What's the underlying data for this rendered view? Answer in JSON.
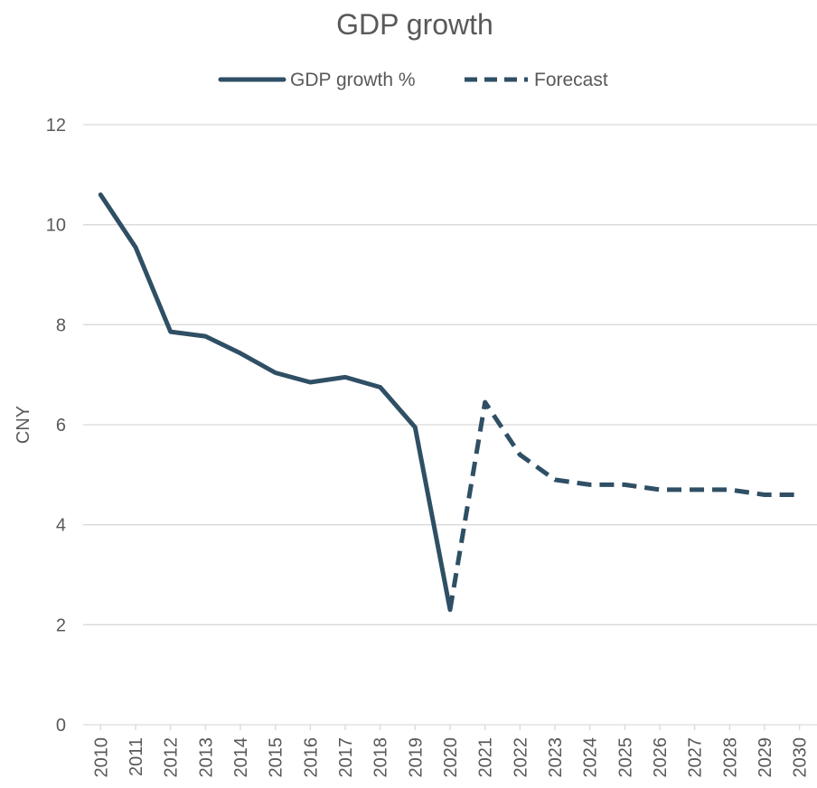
{
  "chart_data": {
    "type": "line",
    "title": "GDP growth",
    "xlabel": "",
    "ylabel": "CNY",
    "ylim": [
      0,
      12
    ],
    "yticks": [
      0,
      2,
      4,
      6,
      8,
      10,
      12
    ],
    "grid": true,
    "legend_position": "top",
    "categories": [
      "2010",
      "2011",
      "2012",
      "2013",
      "2014",
      "2015",
      "2016",
      "2017",
      "2018",
      "2019",
      "2020",
      "2021",
      "2022",
      "2023",
      "2024",
      "2025",
      "2026",
      "2027",
      "2028",
      "2029",
      "2030"
    ],
    "series": [
      {
        "name": "GDP growth %",
        "style": "solid",
        "color": "#2f4f65",
        "values": [
          10.6,
          9.55,
          7.86,
          7.77,
          7.43,
          7.04,
          6.85,
          6.95,
          6.75,
          5.95,
          2.3,
          null,
          null,
          null,
          null,
          null,
          null,
          null,
          null,
          null,
          null
        ]
      },
      {
        "name": "Forecast",
        "style": "dashed",
        "color": "#2f4f65",
        "values": [
          null,
          null,
          null,
          null,
          null,
          null,
          null,
          null,
          null,
          null,
          2.3,
          6.45,
          5.4,
          4.9,
          4.8,
          4.8,
          4.7,
          4.7,
          4.7,
          4.6,
          4.6
        ]
      }
    ]
  },
  "colors": {
    "series_line": "#2f4f65",
    "gridline": "#d9d9d9",
    "text": "#595959"
  }
}
